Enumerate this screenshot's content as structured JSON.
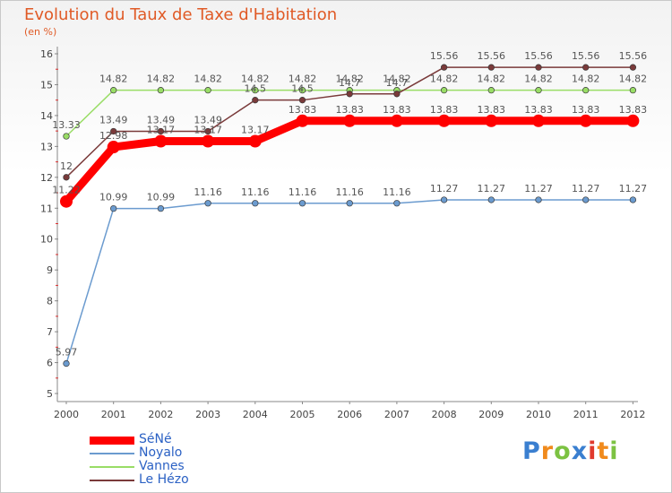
{
  "chart_data": {
    "type": "line",
    "title": "Evolution du Taux de Taxe d'Habitation",
    "ylabel": "(en %)",
    "xlabel": "",
    "ylim": [
      5,
      16
    ],
    "yticks": [
      5,
      6,
      7,
      8,
      9,
      10,
      11,
      12,
      13,
      14,
      15,
      16
    ],
    "grid": false,
    "categories": [
      "2000",
      "2001",
      "2002",
      "2003",
      "2004",
      "2005",
      "2006",
      "2007",
      "2008",
      "2009",
      "2010",
      "2011",
      "2012"
    ],
    "series": [
      {
        "name": "SéNé",
        "color": "#ff0000",
        "values": [
          11.22,
          12.98,
          13.17,
          13.17,
          13.17,
          13.83,
          13.83,
          13.83,
          13.83,
          13.83,
          13.83,
          13.83,
          13.83
        ],
        "labels": [
          "11.22",
          "12.98",
          "13.17",
          "13.17",
          "13.17",
          "13.83",
          "13.83",
          "13.83",
          "13.83",
          "13.83",
          "13.83",
          "13.83",
          "13.83"
        ]
      },
      {
        "name": "Noyalo",
        "color": "#6b9bcf",
        "values": [
          5.97,
          10.99,
          10.99,
          11.16,
          11.16,
          11.16,
          11.16,
          11.16,
          11.27,
          11.27,
          11.27,
          11.27,
          11.27
        ],
        "labels": [
          "5.97",
          "10.99",
          "10.99",
          "11.16",
          "11.16",
          "11.16",
          "11.16",
          "11.16",
          "11.27",
          "11.27",
          "11.27",
          "11.27",
          "11.27"
        ]
      },
      {
        "name": "Vannes",
        "color": "#99dd66",
        "values": [
          13.33,
          14.82,
          14.82,
          14.82,
          14.82,
          14.82,
          14.82,
          14.82,
          14.82,
          14.82,
          14.82,
          14.82,
          14.82
        ],
        "labels": [
          "13.33",
          "14.82",
          "14.82",
          "14.82",
          "14.82",
          "14.82",
          "14.82",
          "14.82",
          "14.82",
          "14.82",
          "14.82",
          "14.82",
          "14.82"
        ]
      },
      {
        "name": "Le Hézo",
        "color": "#7a3a3a",
        "values": [
          12,
          13.49,
          13.49,
          13.49,
          14.5,
          14.5,
          14.7,
          14.7,
          15.56,
          15.56,
          15.56,
          15.56,
          15.56
        ],
        "labels": [
          "12",
          "13.49",
          "13.49",
          "13.49",
          "14.5",
          "14.5",
          "14.7",
          "14.7",
          "15.56",
          "15.56",
          "15.56",
          "15.56",
          "15.56"
        ]
      }
    ]
  },
  "logo": {
    "text": "Proxiti",
    "letters": [
      "P",
      "r",
      "o",
      "x",
      "i",
      "t",
      "i"
    ],
    "colors": [
      "#3a7fd0",
      "#f08a1c",
      "#7cc242",
      "#3a7fd0",
      "#e03a2e",
      "#f08a1c",
      "#7cc242"
    ]
  }
}
